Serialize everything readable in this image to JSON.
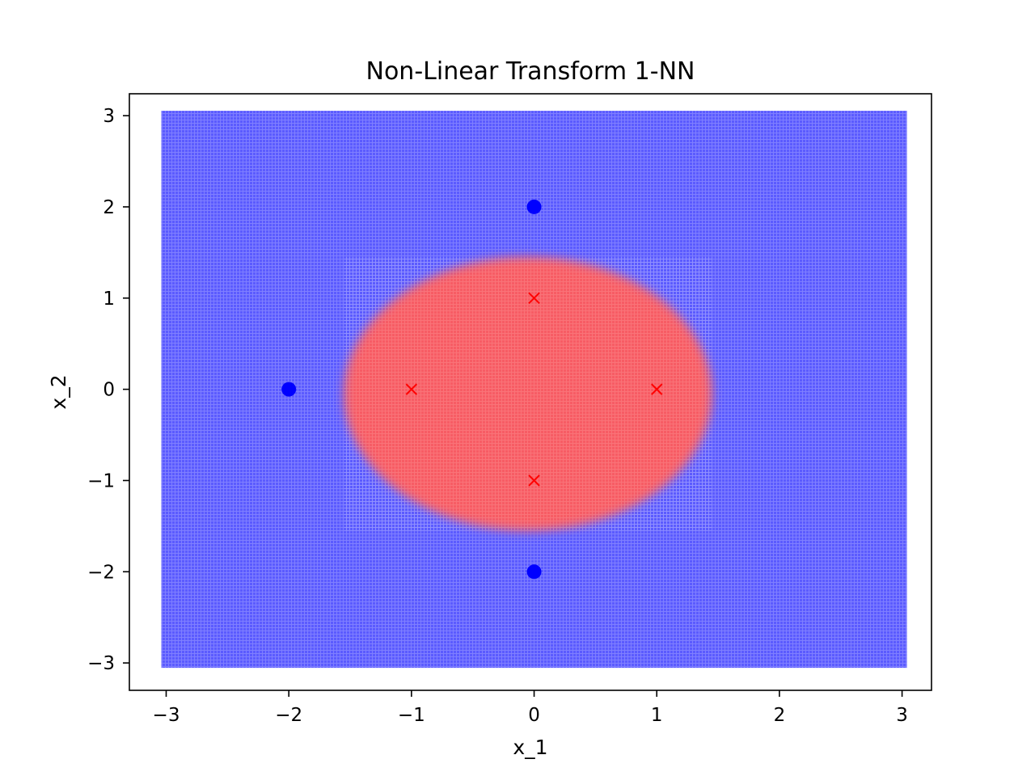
{
  "chart_data": {
    "type": "scatter",
    "title": "Non-Linear Transform 1-NN",
    "xlabel": "x_1",
    "ylabel": "x_2",
    "xlim": [
      -3.3,
      3.24
    ],
    "ylim": [
      -3.3,
      3.24
    ],
    "xticks": [
      -3,
      -2,
      -1,
      0,
      1,
      2,
      3
    ],
    "yticks": [
      -3,
      -2,
      -1,
      0,
      1,
      2,
      3
    ],
    "xtick_labels": [
      "−3",
      "−2",
      "−1",
      "0",
      "1",
      "2",
      "3"
    ],
    "ytick_labels": [
      "−3",
      "−2",
      "−1",
      "0",
      "1",
      "2",
      "3"
    ],
    "grid": false,
    "decision_region": {
      "grid_range": [
        -3,
        3
      ],
      "background_class_color": "#4d4dff",
      "region_class_color": "#ff5c5c",
      "region_shape": "ellipse",
      "region_center": [
        -0.05,
        -0.05
      ],
      "region_semi_axes": [
        1.5,
        1.5
      ]
    },
    "series": [
      {
        "marker": "circle",
        "color": "#0000ff",
        "points": [
          [
            0,
            2
          ],
          [
            -2,
            0
          ],
          [
            0,
            -2
          ]
        ]
      },
      {
        "marker": "x",
        "color": "#ff0000",
        "points": [
          [
            0,
            1
          ],
          [
            -1,
            0
          ],
          [
            1,
            0
          ],
          [
            0,
            -1
          ]
        ]
      }
    ]
  }
}
